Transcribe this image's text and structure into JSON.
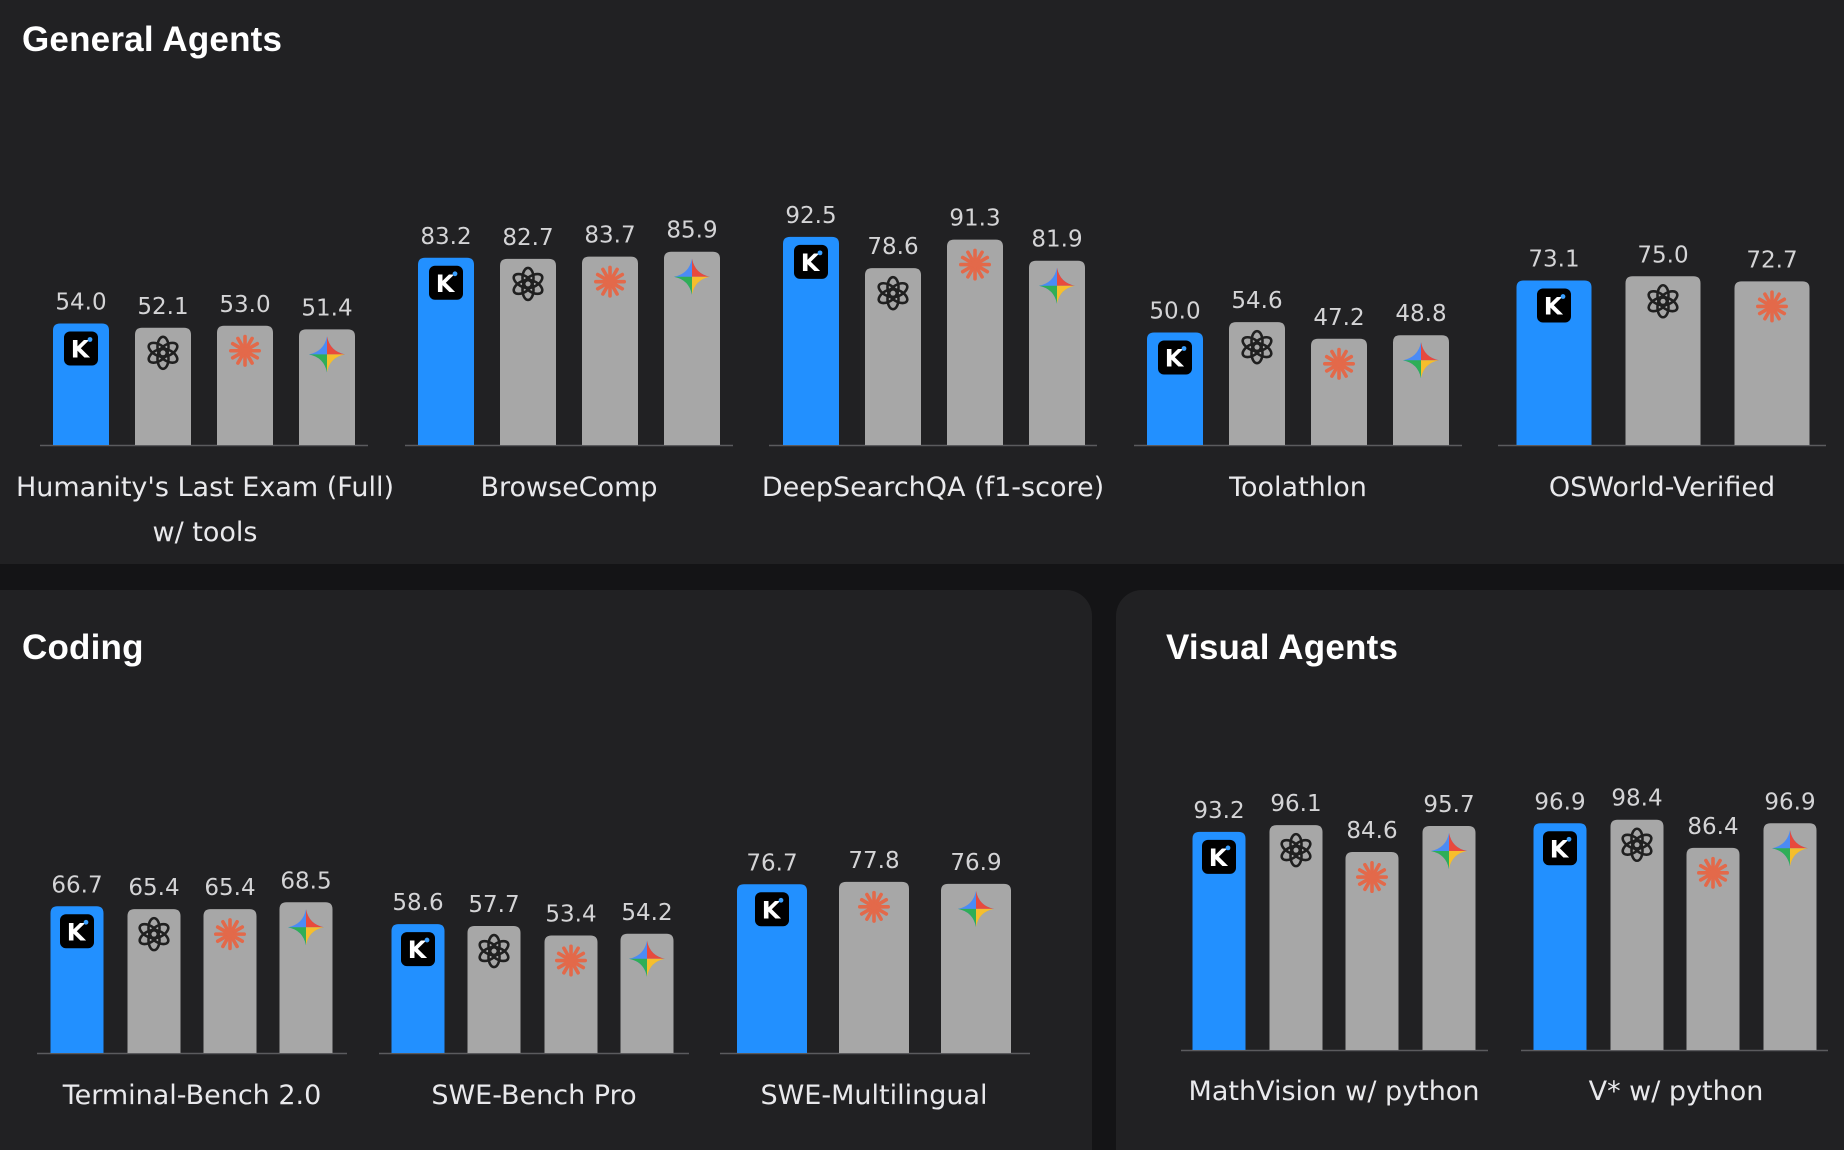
{
  "sections": {
    "general": {
      "title": "General Agents"
    },
    "coding": {
      "title": "Coding"
    },
    "visual": {
      "title": "Visual Agents"
    }
  },
  "colors": {
    "highlight_bar": "#2290ff",
    "other_bar": "#a7a7a7",
    "axis": "#5b5b5e",
    "value_text": "#d4d4d6",
    "label_text": "#e9e9ec"
  },
  "models": {
    "kimi": {
      "icon": "kimi-k-icon",
      "letter": "K"
    },
    "openai": {
      "icon": "openai-icon"
    },
    "anthropic": {
      "icon": "anthropic-icon"
    },
    "gemini": {
      "icon": "gemini-icon"
    }
  },
  "chart_data": [
    {
      "type": "bar",
      "section": "general",
      "title": "Humanity's Last Exam (Full)",
      "subtitle": "w/ tools",
      "ylim": [
        0,
        100
      ],
      "bars": [
        {
          "model": "kimi",
          "value": 54.0,
          "label": "54.0"
        },
        {
          "model": "openai",
          "value": 52.1,
          "label": "52.1"
        },
        {
          "model": "anthropic",
          "value": 53.0,
          "label": "53.0"
        },
        {
          "model": "gemini",
          "value": 51.4,
          "label": "51.4"
        }
      ]
    },
    {
      "type": "bar",
      "section": "general",
      "title": "BrowseComp",
      "subtitle": "",
      "ylim": [
        0,
        100
      ],
      "bars": [
        {
          "model": "kimi",
          "value": 83.2,
          "label": "83.2"
        },
        {
          "model": "openai",
          "value": 82.7,
          "label": "82.7"
        },
        {
          "model": "anthropic",
          "value": 83.7,
          "label": "83.7"
        },
        {
          "model": "gemini",
          "value": 85.9,
          "label": "85.9"
        }
      ]
    },
    {
      "type": "bar",
      "section": "general",
      "title": "DeepSearchQA (f1-score)",
      "subtitle": "",
      "ylim": [
        0,
        100
      ],
      "bars": [
        {
          "model": "kimi",
          "value": 92.5,
          "label": "92.5"
        },
        {
          "model": "openai",
          "value": 78.6,
          "label": "78.6"
        },
        {
          "model": "anthropic",
          "value": 91.3,
          "label": "91.3"
        },
        {
          "model": "gemini",
          "value": 81.9,
          "label": "81.9"
        }
      ]
    },
    {
      "type": "bar",
      "section": "general",
      "title": "Toolathlon",
      "subtitle": "",
      "ylim": [
        0,
        60
      ],
      "bars": [
        {
          "model": "kimi",
          "value": 50.0,
          "label": "50.0"
        },
        {
          "model": "openai",
          "value": 54.6,
          "label": "54.6"
        },
        {
          "model": "anthropic",
          "value": 47.2,
          "label": "47.2"
        },
        {
          "model": "gemini",
          "value": 48.8,
          "label": "48.8"
        }
      ]
    },
    {
      "type": "bar",
      "section": "general",
      "title": "OSWorld-Verified",
      "subtitle": "",
      "ylim": [
        0,
        80
      ],
      "bars": [
        {
          "model": "kimi",
          "value": 73.1,
          "label": "73.1"
        },
        {
          "model": "openai",
          "value": 75.0,
          "label": "75.0"
        },
        {
          "model": "anthropic",
          "value": 72.7,
          "label": "72.7"
        }
      ]
    },
    {
      "type": "bar",
      "section": "coding",
      "title": "Terminal-Bench 2.0",
      "subtitle": "",
      "ylim": [
        0,
        80
      ],
      "bars": [
        {
          "model": "kimi",
          "value": 66.7,
          "label": "66.7"
        },
        {
          "model": "openai",
          "value": 65.4,
          "label": "65.4"
        },
        {
          "model": "anthropic",
          "value": 65.4,
          "label": "65.4"
        },
        {
          "model": "gemini",
          "value": 68.5,
          "label": "68.5"
        }
      ]
    },
    {
      "type": "bar",
      "section": "coding",
      "title": "SWE-Bench Pro",
      "subtitle": "",
      "ylim": [
        0,
        70
      ],
      "bars": [
        {
          "model": "kimi",
          "value": 58.6,
          "label": "58.6"
        },
        {
          "model": "openai",
          "value": 57.7,
          "label": "57.7"
        },
        {
          "model": "anthropic",
          "value": 53.4,
          "label": "53.4"
        },
        {
          "model": "gemini",
          "value": 54.2,
          "label": "54.2"
        }
      ]
    },
    {
      "type": "bar",
      "section": "coding",
      "title": "SWE-Multilingual",
      "subtitle": "",
      "ylim": [
        0,
        90
      ],
      "bars": [
        {
          "model": "kimi",
          "value": 76.7,
          "label": "76.7"
        },
        {
          "model": "anthropic",
          "value": 77.8,
          "label": "77.8"
        },
        {
          "model": "gemini",
          "value": 76.9,
          "label": "76.9"
        }
      ]
    },
    {
      "type": "bar",
      "section": "visual",
      "title": "MathVision w/ python",
      "subtitle": "",
      "ylim": [
        0,
        110
      ],
      "bars": [
        {
          "model": "kimi",
          "value": 93.2,
          "label": "93.2"
        },
        {
          "model": "openai",
          "value": 96.1,
          "label": "96.1"
        },
        {
          "model": "anthropic",
          "value": 84.6,
          "label": "84.6"
        },
        {
          "model": "gemini",
          "value": 95.7,
          "label": "95.7"
        }
      ]
    },
    {
      "type": "bar",
      "section": "visual",
      "title": "V* w/ python",
      "subtitle": "",
      "ylim": [
        0,
        110
      ],
      "bars": [
        {
          "model": "kimi",
          "value": 96.9,
          "label": "96.9"
        },
        {
          "model": "openai",
          "value": 98.4,
          "label": "98.4"
        },
        {
          "model": "anthropic",
          "value": 86.4,
          "label": "86.4"
        },
        {
          "model": "gemini",
          "value": 96.9,
          "label": "96.9"
        }
      ]
    }
  ]
}
